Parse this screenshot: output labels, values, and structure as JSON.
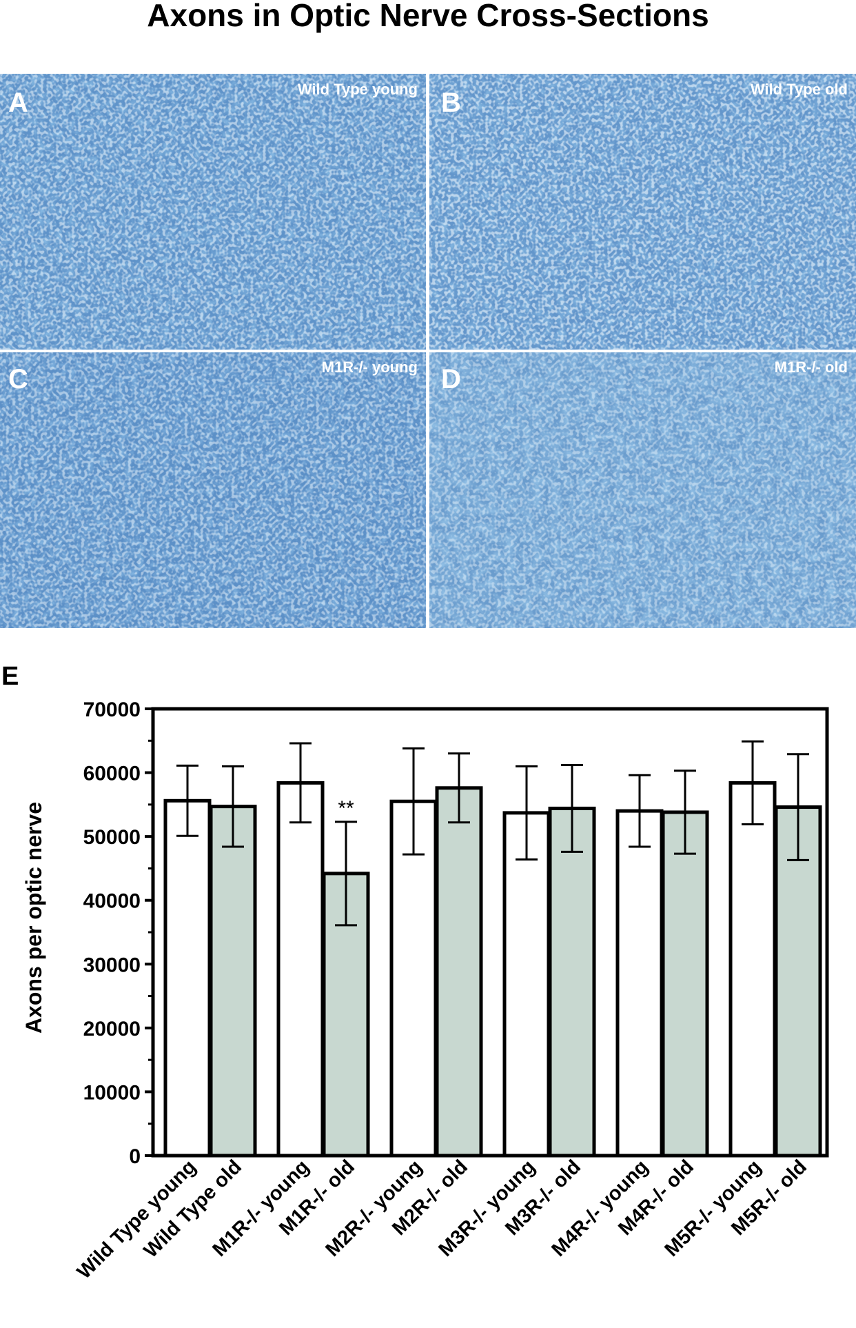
{
  "figure_title": "Axons in Optic Nerve Cross-Sections",
  "micrographs": [
    {
      "letter": "A",
      "label": "Wild Type young"
    },
    {
      "letter": "B",
      "label": "Wild Type old"
    },
    {
      "letter": "C",
      "label": "M1R-/- young"
    },
    {
      "letter": "D",
      "label": "M1R-/- old"
    }
  ],
  "colors": {
    "stain_background": "#3a79bf",
    "stain_light": "#8fb6da",
    "stain_dark": "#1f3f8a",
    "young_bar": "#ffffff",
    "old_bar": "#c8d8d0",
    "axis": "#000000"
  },
  "chart_data": {
    "type": "bar",
    "panel_letter": "E",
    "ylabel": "Axons per optic nerve",
    "ylim": [
      0,
      70000
    ],
    "yticks": [
      0,
      10000,
      20000,
      30000,
      40000,
      50000,
      60000,
      70000
    ],
    "categories": [
      "Wild Type young",
      "Wild Type old",
      "M1R-/- young",
      "M1R-/- old",
      "M2R-/- young",
      "M2R-/- old",
      "M3R-/- young",
      "M3R-/- old",
      "M4R-/- young",
      "M4R-/- old",
      "M5R-/- young",
      "M5R-/- old"
    ],
    "values": [
      55600,
      54700,
      58400,
      44200,
      55500,
      57600,
      53700,
      54400,
      54000,
      53800,
      58400,
      54600
    ],
    "errors": [
      5500,
      6300,
      6200,
      8100,
      8300,
      5400,
      7300,
      6800,
      5600,
      6500,
      6500,
      8300
    ],
    "group": [
      "young",
      "old",
      "young",
      "old",
      "young",
      "old",
      "young",
      "old",
      "young",
      "old",
      "young",
      "old"
    ],
    "annotations": [
      {
        "category": "M1R-/- old",
        "text": "**"
      }
    ],
    "grid": false,
    "legend": "none"
  }
}
